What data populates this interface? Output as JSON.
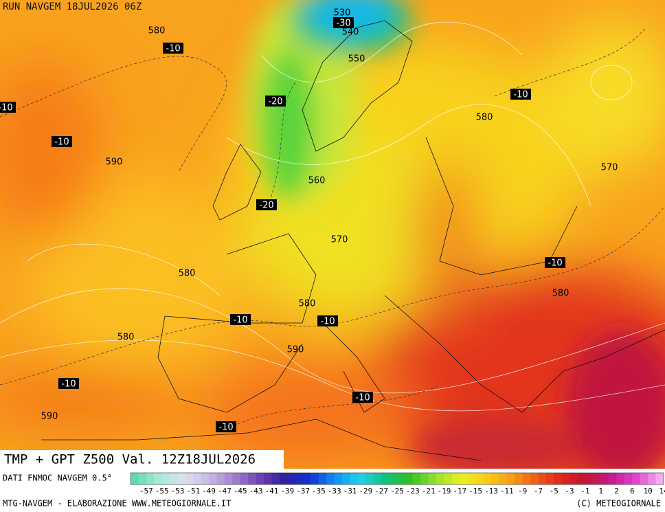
{
  "header": {
    "run": "RUN NAVGEM 18JUL2026 06Z"
  },
  "title": "TMP + GPT Z500 Val. 12Z18JUL2026",
  "source": "DATI FNMOC NAVGEM 0.5°",
  "footer": {
    "left": "MTG-NAVGEM - ELABORAZIONE WWW.METEOGIORNALE.IT",
    "right": "(C) METEOGIORNALE"
  },
  "legend": {
    "labels": [
      -57,
      -55,
      -53,
      -51,
      -49,
      -47,
      -45,
      -43,
      -41,
      -39,
      -37,
      -35,
      -33,
      -31,
      -29,
      -27,
      -25,
      -23,
      -21,
      -19,
      -17,
      -15,
      -13,
      -11,
      -9,
      -7,
      -5,
      -3,
      -1,
      1,
      2,
      6,
      10,
      14
    ]
  },
  "contour_labels": [
    530,
    -30,
    540,
    580,
    -10,
    550,
    -10,
    -10,
    -20,
    580,
    -10,
    590,
    570,
    560,
    -20,
    570,
    -10,
    580,
    580,
    580,
    -10,
    -10,
    580,
    590,
    -10,
    -10,
    590,
    -10
  ]
}
